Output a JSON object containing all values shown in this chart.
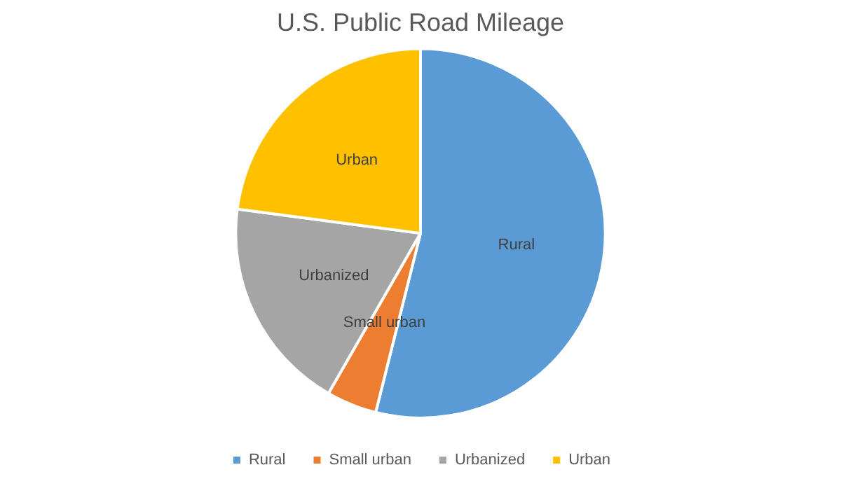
{
  "chart_data": {
    "type": "pie",
    "title": "U.S. Public Road Mileage",
    "categories": [
      "Rural",
      "Small urban",
      "Urbanized",
      "Urban"
    ],
    "values": [
      53.9,
      4.4,
      18.8,
      22.9
    ],
    "colors": [
      "#5b9bd5",
      "#ed7d31",
      "#a5a5a5",
      "#ffc000"
    ],
    "legend": "bottom"
  }
}
